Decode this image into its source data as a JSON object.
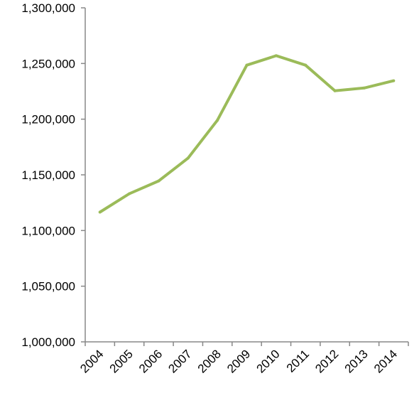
{
  "chart_data": {
    "type": "line",
    "title": "",
    "xlabel": "",
    "ylabel": "",
    "categories": [
      "2004",
      "2005",
      "2006",
      "2007",
      "2008",
      "2009",
      "2010",
      "2011",
      "2012",
      "2013",
      "2014"
    ],
    "series": [
      {
        "values": [
          1116500,
          1133000,
          1144500,
          1165000,
          1199000,
          1248500,
          1257000,
          1248500,
          1225500,
          1228000,
          1234500
        ]
      }
    ],
    "ylim": [
      1000000,
      1300000
    ],
    "yticks": [
      1000000,
      1050000,
      1100000,
      1150000,
      1200000,
      1250000,
      1300000
    ],
    "ytick_labels": [
      "1,000,000",
      "1,050,000",
      "1,100,000",
      "1,150,000",
      "1,200,000",
      "1,250,000",
      "1,300,000"
    ],
    "grid": false,
    "legend": "none",
    "colors": {
      "line": "#9bbb59",
      "axis": "#888888",
      "text": "#000000"
    }
  }
}
